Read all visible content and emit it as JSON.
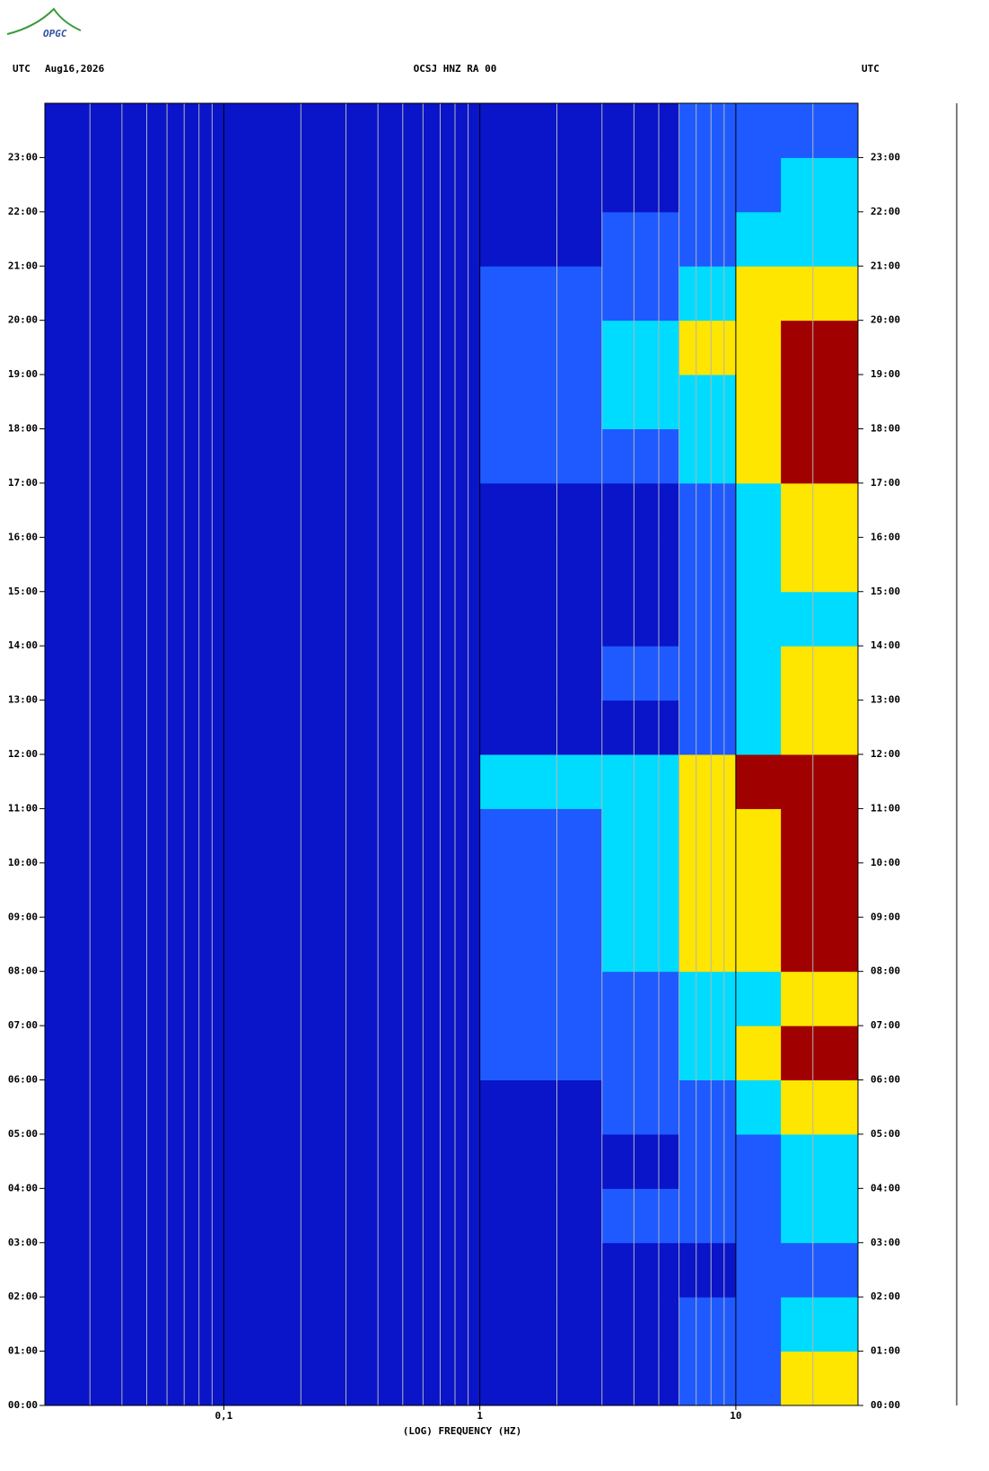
{
  "chart_data": {
    "type": "spectrogram",
    "logo": "OPGC",
    "left_label": "UTC",
    "date": "Aug16,2026",
    "title": "OCSJ HNZ RA 00",
    "right_label": "UTC",
    "xlabel": "(LOG) FREQUENCY (HZ)",
    "xscale": "log",
    "xlim": [
      0.02,
      30
    ],
    "xticks": [
      {
        "value": 0.1,
        "label": "0,1"
      },
      1,
      10
    ],
    "xminor": [
      0.03,
      0.04,
      0.05,
      0.06,
      0.07,
      0.08,
      0.09,
      0.2,
      0.3,
      0.4,
      0.5,
      0.6,
      0.7,
      0.8,
      0.9,
      2,
      3,
      4,
      5,
      6,
      7,
      8,
      9,
      20
    ],
    "ylim": [
      0,
      24
    ],
    "yticks": [
      {
        "value": 0,
        "label": "00:00"
      },
      {
        "value": 1,
        "label": "01:00"
      },
      {
        "value": 2,
        "label": "02:00"
      },
      {
        "value": 3,
        "label": "03:00"
      },
      {
        "value": 4,
        "label": "04:00"
      },
      {
        "value": 5,
        "label": "05:00"
      },
      {
        "value": 6,
        "label": "06:00"
      },
      {
        "value": 7,
        "label": "07:00"
      },
      {
        "value": 8,
        "label": "08:00"
      },
      {
        "value": 9,
        "label": "09:00"
      },
      {
        "value": 10,
        "label": "10:00"
      },
      {
        "value": 11,
        "label": "11:00"
      },
      {
        "value": 12,
        "label": "12:00"
      },
      {
        "value": 13,
        "label": "13:00"
      },
      {
        "value": 14,
        "label": "14:00"
      },
      {
        "value": 15,
        "label": "15:00"
      },
      {
        "value": 16,
        "label": "16:00"
      },
      {
        "value": 17,
        "label": "17:00"
      },
      {
        "value": 18,
        "label": "18:00"
      },
      {
        "value": 19,
        "label": "19:00"
      },
      {
        "value": 20,
        "label": "20:00"
      },
      {
        "value": 21,
        "label": "21:00"
      },
      {
        "value": 22,
        "label": "22:00"
      },
      {
        "value": 23,
        "label": "23:00"
      }
    ],
    "freq_edges": [
      0.02,
      0.1,
      1,
      3,
      6,
      10,
      15,
      22,
      30
    ],
    "hours": [
      0,
      1,
      2,
      3,
      4,
      5,
      6,
      7,
      8,
      9,
      10,
      11,
      12,
      13,
      14,
      15,
      16,
      17,
      18,
      19,
      20,
      21,
      22,
      23
    ],
    "colors": [
      "#0a14c8",
      "#1e5aff",
      "#00dcff",
      "#ffe600",
      "#a00000"
    ],
    "levels": [
      [
        0,
        0,
        0,
        0,
        1,
        1,
        3,
        3
      ],
      [
        0,
        0,
        0,
        0,
        1,
        1,
        2,
        2
      ],
      [
        0,
        0,
        0,
        0,
        0,
        1,
        1,
        1
      ],
      [
        0,
        0,
        0,
        1,
        1,
        1,
        2,
        2
      ],
      [
        0,
        0,
        0,
        0,
        1,
        1,
        2,
        2
      ],
      [
        0,
        0,
        0,
        1,
        1,
        2,
        3,
        3
      ],
      [
        0,
        0,
        1,
        1,
        2,
        3,
        4,
        4
      ],
      [
        0,
        0,
        1,
        1,
        2,
        2,
        3,
        3
      ],
      [
        0,
        0,
        1,
        2,
        3,
        3,
        4,
        4
      ],
      [
        0,
        0,
        1,
        2,
        3,
        3,
        4,
        4
      ],
      [
        0,
        0,
        1,
        2,
        3,
        3,
        4,
        4
      ],
      [
        0,
        0,
        2,
        2,
        3,
        4,
        4,
        4
      ],
      [
        0,
        0,
        0,
        0,
        1,
        2,
        3,
        3
      ],
      [
        0,
        0,
        0,
        1,
        1,
        2,
        3,
        3
      ],
      [
        0,
        0,
        0,
        0,
        1,
        2,
        2,
        2
      ],
      [
        0,
        0,
        0,
        0,
        1,
        2,
        3,
        3
      ],
      [
        0,
        0,
        0,
        0,
        1,
        2,
        3,
        3
      ],
      [
        0,
        0,
        1,
        1,
        2,
        3,
        4,
        4
      ],
      [
        0,
        0,
        1,
        2,
        2,
        3,
        4,
        4
      ],
      [
        0,
        0,
        1,
        2,
        3,
        3,
        4,
        4
      ],
      [
        0,
        0,
        1,
        1,
        2,
        3,
        3,
        3
      ],
      [
        0,
        0,
        0,
        1,
        1,
        2,
        2,
        2
      ],
      [
        0,
        0,
        0,
        0,
        1,
        1,
        2,
        2
      ],
      [
        0,
        0,
        0,
        0,
        1,
        1,
        1,
        1
      ]
    ]
  }
}
